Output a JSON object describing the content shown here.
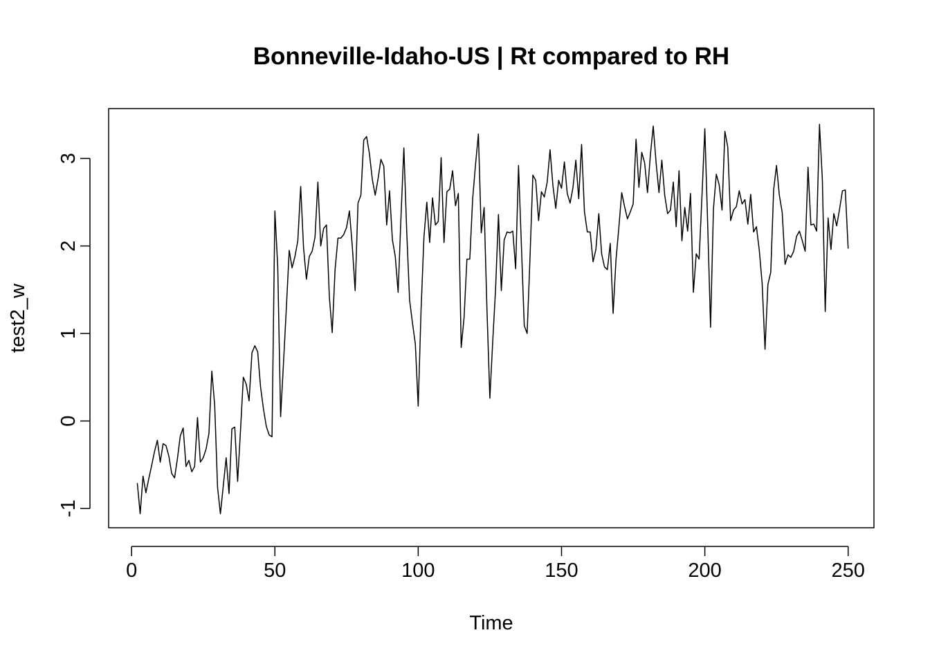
{
  "chart_data": {
    "type": "line",
    "title": "Bonneville-Idaho-US | Rt compared to RH",
    "xlabel": "Time",
    "ylabel": "test2_w",
    "xlim": [
      -8,
      259
    ],
    "ylim": [
      -1.22,
      3.57
    ],
    "x_ticks": [
      0,
      50,
      100,
      150,
      200,
      250
    ],
    "x_tick_labels": [
      "0",
      "50",
      "100",
      "150",
      "200",
      "250"
    ],
    "y_ticks": [
      -1,
      0,
      1,
      2,
      3
    ],
    "y_tick_labels": [
      "-1",
      "0",
      "1",
      "2",
      "3"
    ],
    "grid": false,
    "line_color": "#000000",
    "x_start": 2,
    "x_step": 1,
    "values": [
      -0.71,
      -1.06,
      -0.63,
      -0.82,
      -0.66,
      -0.51,
      -0.35,
      -0.22,
      -0.47,
      -0.26,
      -0.28,
      -0.4,
      -0.6,
      -0.65,
      -0.43,
      -0.17,
      -0.08,
      -0.52,
      -0.45,
      -0.58,
      -0.52,
      0.04,
      -0.47,
      -0.42,
      -0.32,
      -0.14,
      0.57,
      0.18,
      -0.76,
      -1.06,
      -0.74,
      -0.42,
      -0.83,
      -0.09,
      -0.07,
      -0.69,
      -0.11,
      0.5,
      0.42,
      0.23,
      0.78,
      0.86,
      0.79,
      0.39,
      0.14,
      -0.06,
      -0.16,
      -0.18,
      2.4,
      1.76,
      0.05,
      0.66,
      1.29,
      1.95,
      1.75,
      1.88,
      2.06,
      2.68,
      1.98,
      1.62,
      1.88,
      1.94,
      2.1,
      2.73,
      2.0,
      2.2,
      2.24,
      1.42,
      1.01,
      1.73,
      2.09,
      2.09,
      2.13,
      2.21,
      2.4,
      2.0,
      1.49,
      2.49,
      2.58,
      3.21,
      3.25,
      3.05,
      2.76,
      2.58,
      2.77,
      2.99,
      2.91,
      2.24,
      2.63,
      2.07,
      1.88,
      1.47,
      2.34,
      3.12,
      2.16,
      1.38,
      1.12,
      0.88,
      0.17,
      1.27,
      2.1,
      2.5,
      2.04,
      2.55,
      2.24,
      2.28,
      3.01,
      2.04,
      2.62,
      2.65,
      2.86,
      2.46,
      2.6,
      0.84,
      1.18,
      1.85,
      1.85,
      2.54,
      2.93,
      3.28,
      2.15,
      2.44,
      1.26,
      0.26,
      0.91,
      1.51,
      2.36,
      1.49,
      2.07,
      2.16,
      2.15,
      2.17,
      1.74,
      2.92,
      2.01,
      1.09,
      1.0,
      1.86,
      2.81,
      2.75,
      2.29,
      2.62,
      2.56,
      2.73,
      3.1,
      2.69,
      2.43,
      2.75,
      2.66,
      2.96,
      2.6,
      2.49,
      2.67,
      2.98,
      2.54,
      3.16,
      2.39,
      2.16,
      2.16,
      1.82,
      1.96,
      2.37,
      1.91,
      1.76,
      1.73,
      2.03,
      1.23,
      1.84,
      2.21,
      2.61,
      2.45,
      2.31,
      2.39,
      2.48,
      3.22,
      2.67,
      3.07,
      2.95,
      2.61,
      3.04,
      3.37,
      2.95,
      2.61,
      2.98,
      2.58,
      2.37,
      2.41,
      2.73,
      2.22,
      2.86,
      2.06,
      2.44,
      2.17,
      2.6,
      1.47,
      1.91,
      1.85,
      2.57,
      3.34,
      2.24,
      1.07,
      2.42,
      2.82,
      2.7,
      2.41,
      3.31,
      3.13,
      2.29,
      2.41,
      2.45,
      2.63,
      2.48,
      2.53,
      2.25,
      2.59,
      2.16,
      2.22,
      1.95,
      1.57,
      0.82,
      1.56,
      1.7,
      2.64,
      2.92,
      2.58,
      2.38,
      1.79,
      1.9,
      1.87,
      1.94,
      2.11,
      2.17,
      2.06,
      1.94,
      2.9,
      2.24,
      2.25,
      2.17,
      3.39,
      2.76,
      1.25,
      2.32,
      1.96,
      2.37,
      2.23,
      2.42,
      2.63,
      2.64,
      1.97
    ]
  }
}
